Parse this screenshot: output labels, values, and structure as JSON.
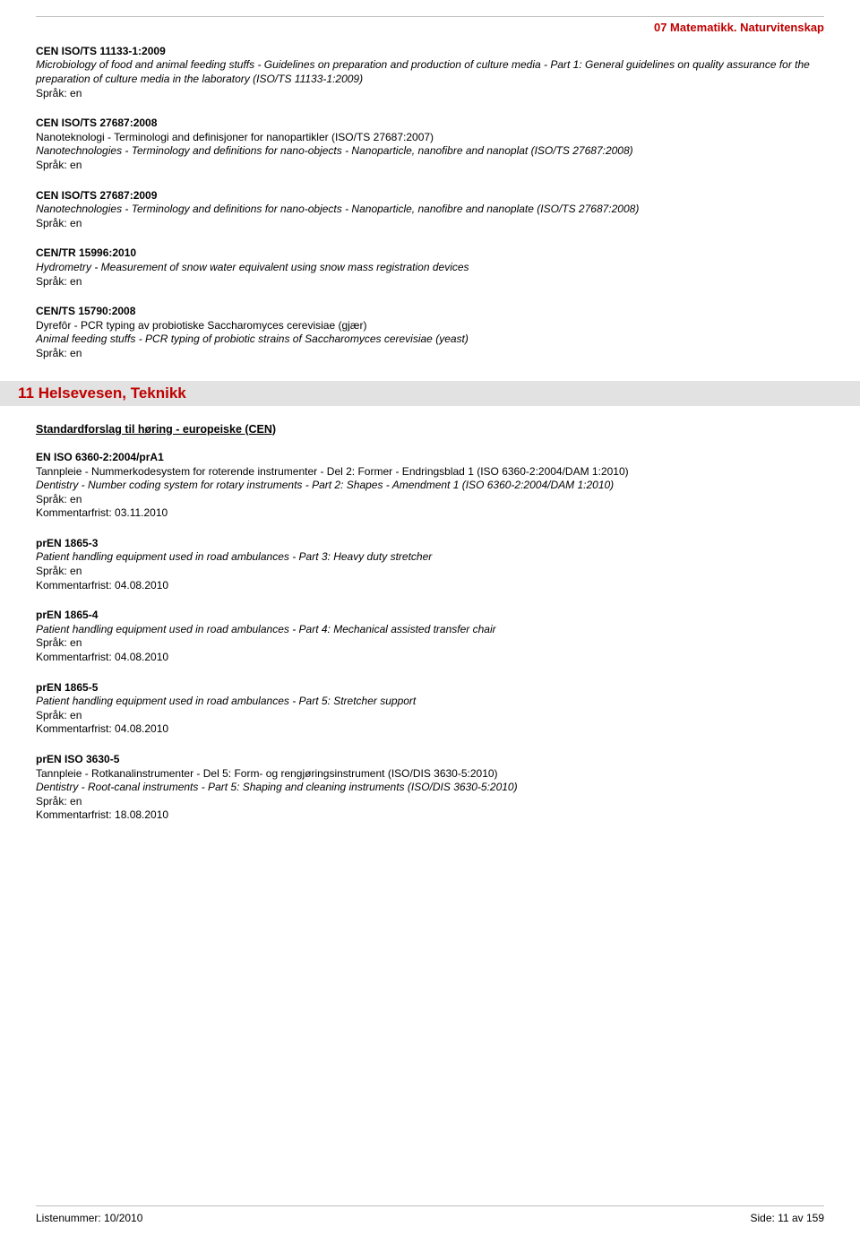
{
  "header": {
    "category": "07  Matematikk. Naturvitenskap"
  },
  "entries1": [
    {
      "code": "CEN ISO/TS 11133-1:2009",
      "desc_it": "Microbiology of food and animal feeding stuffs - Guidelines on preparation and production of culture media - Part 1: General guidelines on quality assurance for the preparation of culture media in the laboratory (ISO/TS 11133-1:2009)",
      "lang": "Språk: en"
    },
    {
      "code": "CEN ISO/TS 27687:2008",
      "desc_plain": "Nanoteknologi - Terminologi and definisjoner for nanopartikler (ISO/TS 27687:2007)",
      "desc_it": "Nanotechnologies - Terminology and definitions for nano-objects - Nanoparticle, nanofibre and nanoplat (ISO/TS 27687:2008)",
      "lang": "Språk: en"
    },
    {
      "code": "CEN ISO/TS 27687:2009",
      "desc_it": "Nanotechnologies - Terminology and definitions for nano-objects - Nanoparticle, nanofibre and nanoplate (ISO/TS 27687:2008)",
      "lang": "Språk: en"
    },
    {
      "code": "CEN/TR 15996:2010",
      "desc_it": "Hydrometry - Measurement of snow water equivalent using snow mass registration devices",
      "lang": "Språk: en"
    },
    {
      "code": "CEN/TS 15790:2008",
      "desc_plain": "Dyrefôr - PCR typing av probiotiske Saccharomyces cerevisiae (gjær)",
      "desc_it": "Animal feeding stuffs - PCR typing of probiotic strains of Saccharomyces cerevisiae (yeast)",
      "lang": "Språk: en"
    }
  ],
  "section": {
    "title": "11  Helsevesen, Teknikk"
  },
  "subheading": "Standardforslag til høring - europeiske (CEN)",
  "entries2": [
    {
      "code": "EN ISO 6360-2:2004/prA1",
      "desc_plain": "Tannpleie - Nummerkodesystem for roterende instrumenter - Del 2: Former - Endringsblad 1 (ISO 6360-2:2004/DAM 1:2010)",
      "desc_it": "Dentistry - Number coding system for rotary instruments - Part 2: Shapes - Amendment 1 (ISO 6360-2:2004/DAM 1:2010)",
      "lang": "Språk: en",
      "deadline": "Kommentarfrist: 03.11.2010"
    },
    {
      "code": "prEN 1865-3",
      "desc_it": "Patient handling equipment used in road ambulances - Part 3: Heavy duty stretcher",
      "lang": "Språk: en",
      "deadline": "Kommentarfrist: 04.08.2010"
    },
    {
      "code": "prEN 1865-4",
      "desc_it": "Patient handling equipment used in road ambulances - Part 4: Mechanical assisted transfer chair",
      "lang": "Språk: en",
      "deadline": "Kommentarfrist: 04.08.2010"
    },
    {
      "code": "prEN 1865-5",
      "desc_it": "Patient handling equipment used in road ambulances - Part 5: Stretcher support",
      "lang": "Språk: en",
      "deadline": "Kommentarfrist: 04.08.2010"
    },
    {
      "code": "prEN ISO 3630-5",
      "desc_plain": "Tannpleie - Rotkanalinstrumenter - Del 5: Form- og rengjøringsinstrument (ISO/DIS 3630-5:2010)",
      "desc_it": "Dentistry - Root-canal instruments - Part 5: Shaping and cleaning instruments (ISO/DIS 3630-5:2010)",
      "lang": "Språk: en",
      "deadline": "Kommentarfrist: 18.08.2010"
    }
  ],
  "footer": {
    "left": "Listenummer: 10/2010",
    "right": "Side: 11 av 159"
  }
}
